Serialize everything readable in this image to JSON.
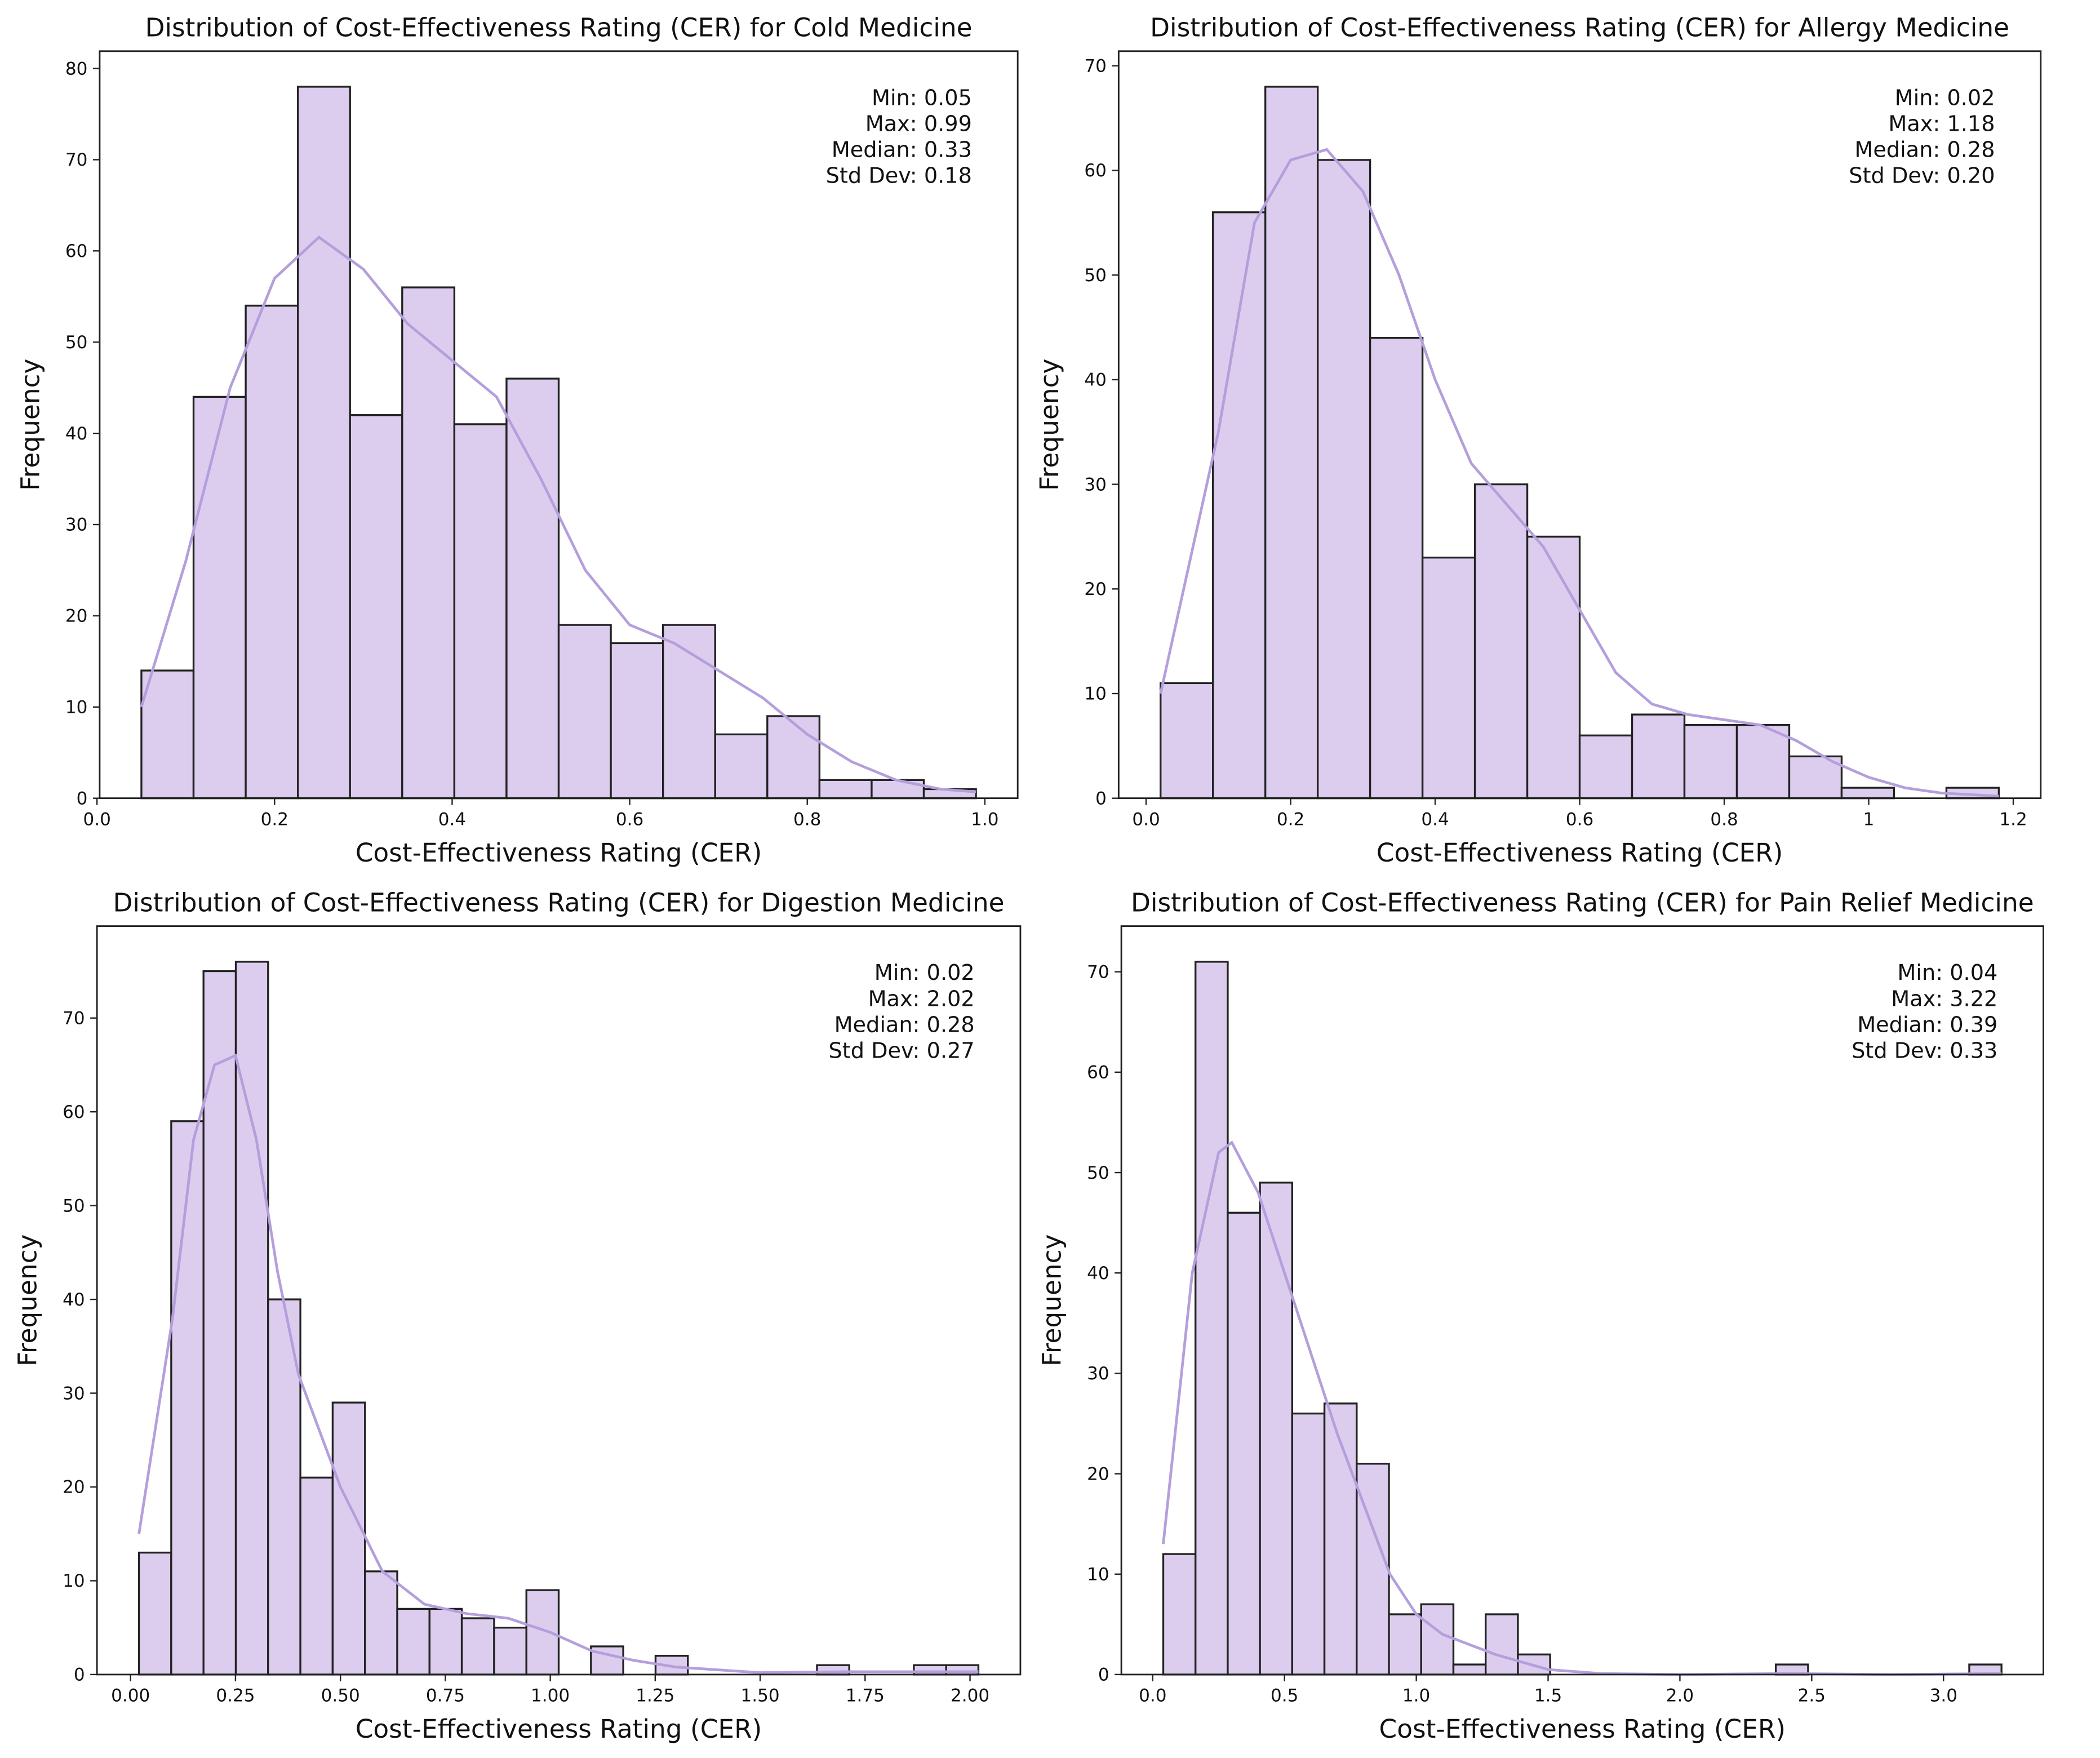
{
  "chart_data": [
    {
      "type": "histogram",
      "title": "Distribution of Cost-Effectiveness Rating (CER) for Cold Medicine",
      "xlabel": "Cost-Effectiveness Rating (CER)",
      "ylabel": "Frequency",
      "bins": [
        0.05,
        0.10875,
        0.1675,
        0.22625,
        0.285,
        0.34375,
        0.4025,
        0.46125,
        0.52,
        0.57875,
        0.6375,
        0.69625,
        0.755,
        0.81375,
        0.8725,
        0.93125,
        0.99
      ],
      "counts": [
        14,
        44,
        54,
        78,
        42,
        56,
        41,
        46,
        19,
        17,
        19,
        7,
        9,
        2,
        2,
        1
      ],
      "color": "#dccdee",
      "edgecolor": "#222222",
      "kde": {
        "color": "#b49fdc",
        "x": [
          0.05,
          0.1,
          0.15,
          0.2,
          0.25,
          0.3,
          0.35,
          0.4,
          0.45,
          0.5,
          0.55,
          0.6,
          0.65,
          0.7,
          0.75,
          0.8,
          0.85,
          0.9,
          0.95,
          0.99
        ],
        "values": [
          10,
          26,
          45,
          57,
          61.5,
          58,
          52,
          48,
          44,
          35,
          25,
          19,
          17,
          14,
          11,
          7,
          4,
          2,
          1,
          0.7
        ]
      },
      "annotations": [
        "Min: 0.05",
        "Max: 0.99",
        "Median: 0.33",
        "Std Dev: 0.18"
      ],
      "xlim": [
        0.003,
        1.037
      ],
      "ylim": [
        0,
        81.9
      ],
      "xticks": [
        {
          "value": 0,
          "label": "0.0"
        },
        0.2,
        0.4,
        0.6,
        0.8,
        {
          "value": 1,
          "label": "1.0"
        }
      ],
      "yticks": [
        0,
        10,
        20,
        30,
        40,
        50,
        60,
        70,
        80
      ]
    },
    {
      "type": "histogram",
      "title": "Distribution of Cost-Effectiveness Rating (CER) for Allergy Medicine",
      "xlabel": "Cost-Effectiveness Rating (CER)",
      "ylabel": "Frequency",
      "bins": [
        0.02,
        0.0925,
        0.165,
        0.2375,
        0.31,
        0.3825,
        0.455,
        0.5275,
        0.6,
        0.6725,
        0.745,
        0.8175,
        0.89,
        0.9625,
        1.035,
        1.1075,
        1.18
      ],
      "counts": [
        11,
        56,
        68,
        61,
        44,
        23,
        30,
        25,
        6,
        8,
        7,
        7,
        4,
        1,
        0,
        1
      ],
      "color": "#dccdee",
      "edgecolor": "#222222",
      "kde": {
        "color": "#b49fdc",
        "x": [
          0.02,
          0.1,
          0.15,
          0.2,
          0.25,
          0.3,
          0.35,
          0.4,
          0.45,
          0.5,
          0.55,
          0.6,
          0.65,
          0.7,
          0.75,
          0.8,
          0.85,
          0.9,
          0.95,
          1.0,
          1.05,
          1.1,
          1.18
        ],
        "values": [
          10,
          35,
          55,
          61,
          62,
          58,
          50,
          40,
          32,
          28,
          24,
          18,
          12,
          9,
          8,
          7.5,
          7,
          5.5,
          3.5,
          2,
          1,
          0.5,
          0.2
        ]
      },
      "annotations": [
        "Min: 0.02",
        "Max: 1.18",
        "Median: 0.28",
        "Std Dev: 0.20"
      ],
      "xlim": [
        -0.038,
        1.238
      ],
      "ylim": [
        0,
        71.4
      ],
      "xticks": [
        {
          "value": 0,
          "label": "0.0"
        },
        0.2,
        0.4,
        0.6,
        0.8,
        1.0,
        1.2
      ],
      "yticks": [
        0,
        10,
        20,
        30,
        40,
        50,
        60,
        70
      ]
    },
    {
      "type": "histogram",
      "title": "Distribution of Cost-Effectiveness Rating (CER) for Digestion Medicine",
      "xlabel": "Cost-Effectiveness Rating (CER)",
      "ylabel": "Frequency",
      "bins": [
        0.02,
        0.0969,
        0.1738,
        0.2508,
        0.3277,
        0.4046,
        0.4815,
        0.5585,
        0.6354,
        0.7123,
        0.7892,
        0.8662,
        0.9431,
        1.02,
        1.0969,
        1.1738,
        1.2508,
        1.3277,
        1.4046,
        1.4815,
        1.5585,
        1.6354,
        1.7123,
        1.7892,
        1.8662,
        1.9431,
        2.02
      ],
      "counts": [
        13,
        59,
        75,
        76,
        40,
        21,
        29,
        11,
        7,
        7,
        6,
        5,
        9,
        0,
        3,
        0,
        2,
        0,
        0,
        0,
        0,
        1,
        0,
        0,
        1,
        1
      ],
      "color": "#dccdee",
      "edgecolor": "#222222",
      "kde": {
        "color": "#b49fdc",
        "x": [
          0.02,
          0.1,
          0.15,
          0.2,
          0.25,
          0.3,
          0.35,
          0.4,
          0.5,
          0.6,
          0.7,
          0.8,
          0.9,
          1.0,
          1.1,
          1.2,
          1.3,
          1.5,
          1.7,
          1.9,
          2.02
        ],
        "values": [
          15,
          38,
          57,
          65,
          66,
          57,
          43,
          32,
          20,
          11,
          7.5,
          6.5,
          6,
          4.5,
          2.5,
          1.5,
          0.8,
          0.2,
          0.3,
          0.3,
          0.3
        ]
      },
      "annotations": [
        "Min: 0.02",
        "Max: 2.02",
        "Median: 0.28",
        "Std Dev: 0.27"
      ],
      "xlim": [
        -0.08,
        2.12
      ],
      "ylim": [
        0,
        79.8
      ],
      "xticks": [
        {
          "value": 0,
          "label": "0.00"
        },
        0.25,
        {
          "value": 0.5,
          "label": "0.50"
        },
        0.75,
        {
          "value": 1,
          "label": "1.00"
        },
        1.25,
        {
          "value": 1.5,
          "label": "1.50"
        },
        1.75,
        {
          "value": 2,
          "label": "2.00"
        }
      ],
      "yticks": [
        0,
        10,
        20,
        30,
        40,
        50,
        60,
        70
      ]
    },
    {
      "type": "histogram",
      "title": "Distribution of Cost-Effectiveness Rating (CER) for Pain Relief Medicine",
      "xlabel": "Cost-Effectiveness Rating (CER)",
      "ylabel": "Frequency",
      "bins": [
        0.04,
        0.1623,
        0.2846,
        0.4069,
        0.5292,
        0.6515,
        0.7738,
        0.8962,
        1.0185,
        1.1408,
        1.2631,
        1.3854,
        1.5077,
        1.63,
        1.7523,
        1.8746,
        1.9969,
        2.1192,
        2.2415,
        2.3638,
        2.4862,
        2.6085,
        2.7308,
        2.8531,
        2.9754,
        3.0977,
        3.22
      ],
      "counts": [
        12,
        71,
        46,
        49,
        26,
        27,
        21,
        6,
        7,
        1,
        6,
        2,
        0,
        0,
        0,
        0,
        0,
        0,
        0,
        1,
        0,
        0,
        0,
        0,
        0,
        1
      ],
      "color": "#dccdee",
      "edgecolor": "#222222",
      "kde": {
        "color": "#b49fdc",
        "x": [
          0.04,
          0.15,
          0.25,
          0.3,
          0.4,
          0.5,
          0.6,
          0.7,
          0.8,
          0.9,
          1.0,
          1.1,
          1.2,
          1.3,
          1.5,
          1.7,
          2.0,
          2.4,
          2.8,
          3.22
        ],
        "values": [
          13,
          40,
          52,
          53,
          48,
          40,
          32,
          24,
          17,
          10,
          6,
          4,
          3,
          2,
          0.5,
          0.1,
          0,
          0.1,
          0,
          0.1
        ]
      },
      "annotations": [
        "Min: 0.04",
        "Max: 3.22",
        "Median: 0.39",
        "Std Dev: 0.33"
      ],
      "xlim": [
        -0.119,
        3.379
      ],
      "ylim": [
        0,
        74.55
      ],
      "xticks": [
        {
          "value": 0,
          "label": "0.0"
        },
        0.5,
        {
          "value": 1,
          "label": "1.0"
        },
        1.5,
        {
          "value": 2,
          "label": "2.0"
        },
        2.5,
        {
          "value": 3,
          "label": "3.0"
        }
      ],
      "yticks": [
        0,
        10,
        20,
        30,
        40,
        50,
        60,
        70
      ]
    }
  ]
}
